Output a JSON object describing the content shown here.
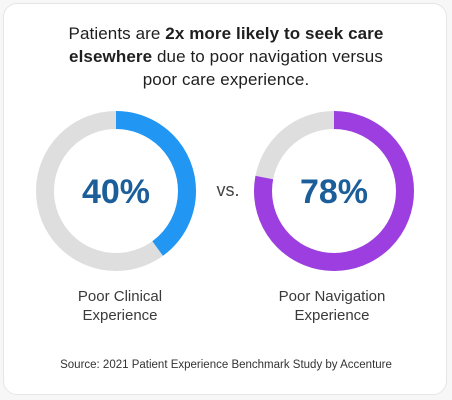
{
  "headline": {
    "part1": "Patients are ",
    "bold1": "2x more likely to seek care",
    "bold2": "elsewhere",
    "part2": " due to poor navigation versus",
    "line3": "poor care experience."
  },
  "chart_data": {
    "type": "pie",
    "style": "donut",
    "separator": "vs.",
    "series": [
      {
        "label_line1": "Poor Clinical",
        "label_line2": "Experience",
        "value": 40,
        "display": "40%",
        "color": "#2196f3"
      },
      {
        "label_line1": "Poor Navigation",
        "label_line2": "Experience",
        "value": 78,
        "display": "78%",
        "color": "#9c3ee0"
      }
    ],
    "track_color": "#dedede"
  },
  "source": "Source: 2021 Patient Experience Benchmark Study by Accenture"
}
